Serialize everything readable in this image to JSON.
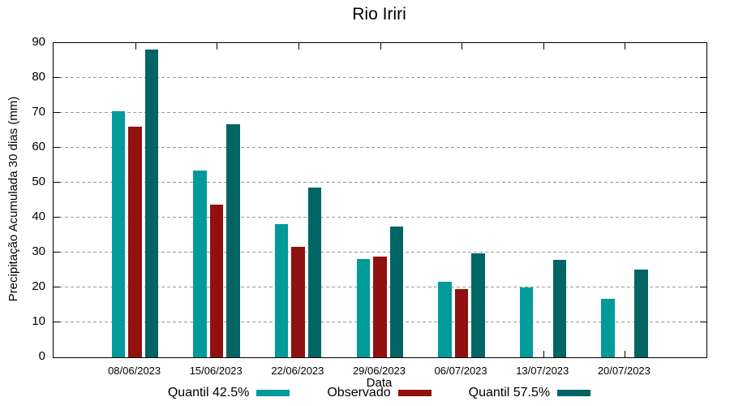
{
  "chart_data": {
    "type": "bar",
    "title": "Rio Iriri",
    "xlabel": "Data",
    "ylabel": "Precipitação Acumulada 30 dias (mm)",
    "ylim": [
      0,
      90
    ],
    "ytick_step": 10,
    "grid": true,
    "legend_position": "bottom",
    "categories": [
      "08/06/2023",
      "15/06/2023",
      "22/06/2023",
      "29/06/2023",
      "06/07/2023",
      "13/07/2023",
      "20/07/2023"
    ],
    "series": [
      {
        "name": "Quantil 42.5%",
        "color": "#009A9A",
        "values": [
          70.4,
          53.5,
          38.1,
          28.2,
          21.7,
          19.9,
          16.8
        ]
      },
      {
        "name": "Observado",
        "color": "#911010",
        "values": [
          66.0,
          43.7,
          31.6,
          28.9,
          19.5,
          null,
          null
        ]
      },
      {
        "name": "Quantil 57.5%",
        "color": "#026565",
        "values": [
          88.2,
          66.8,
          48.7,
          37.5,
          29.7,
          27.8,
          25.2
        ]
      }
    ]
  }
}
